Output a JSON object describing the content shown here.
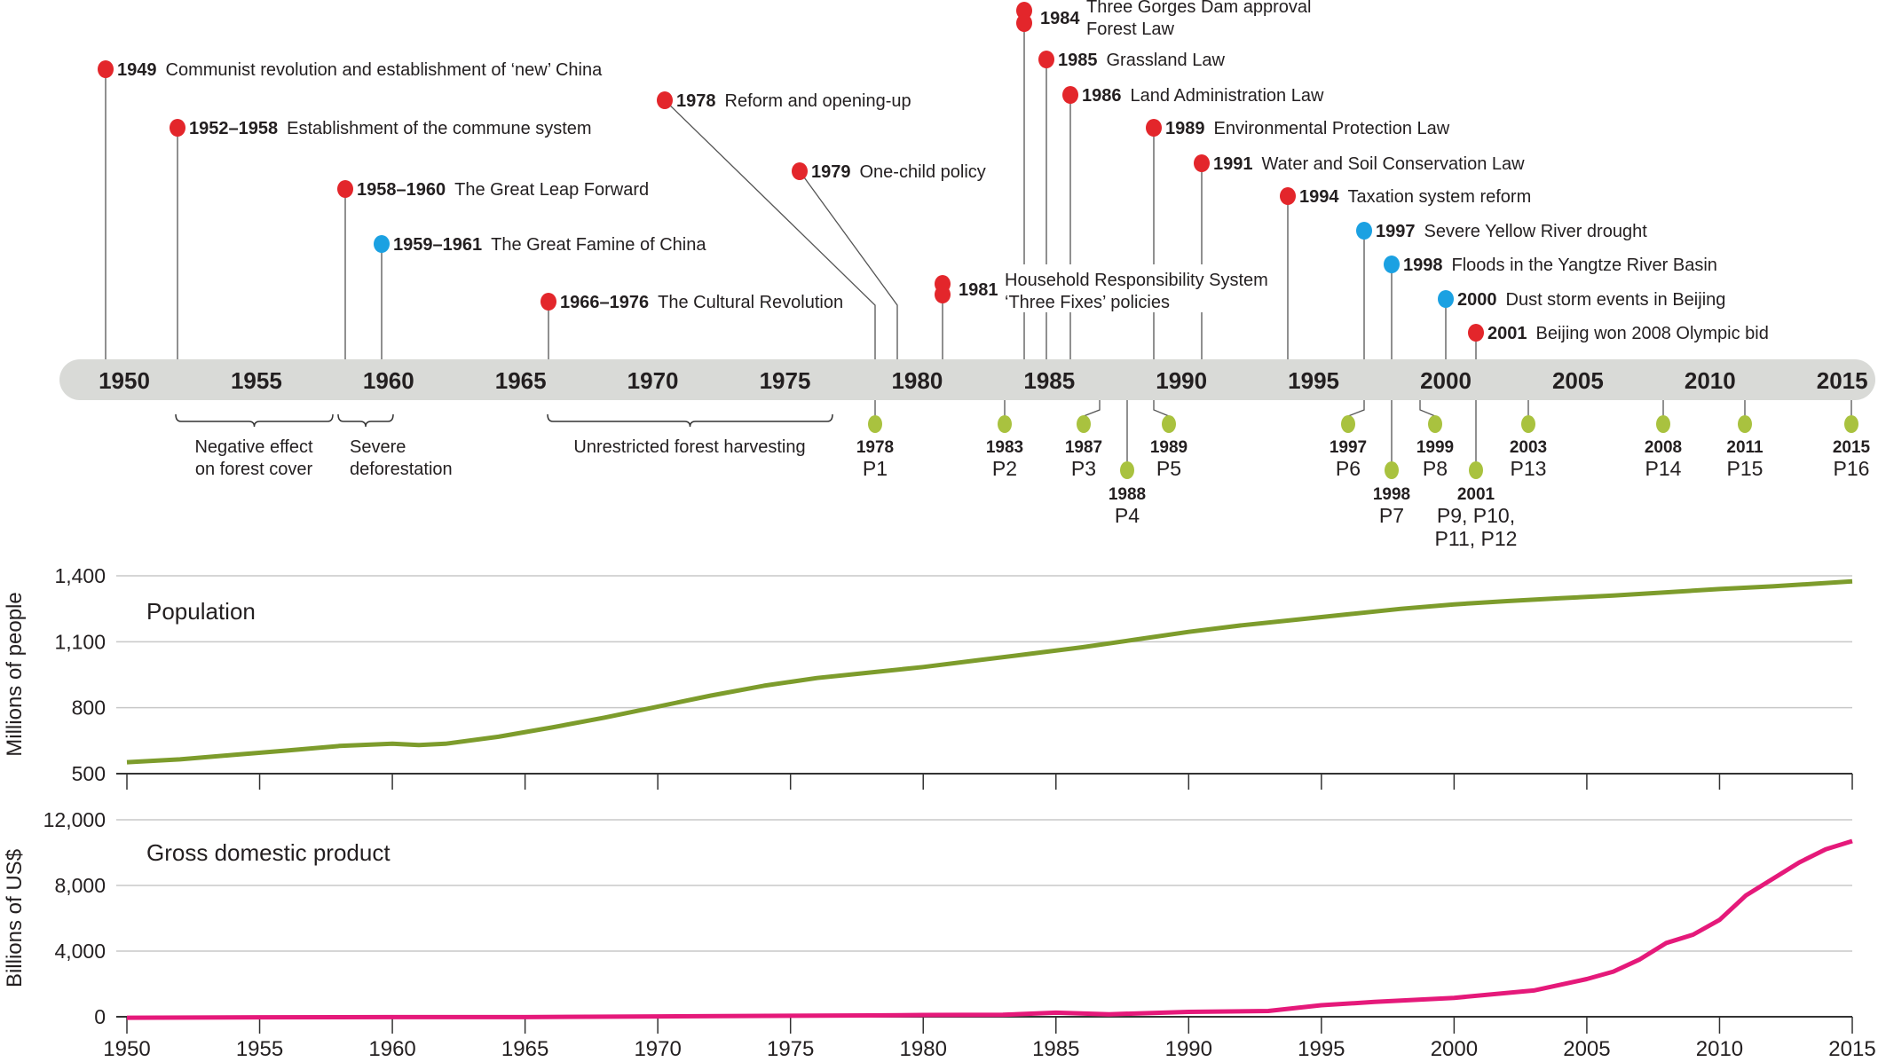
{
  "colors": {
    "event_policy": "#e3262b",
    "event_disaster": "#1ba1e2",
    "forest_policy": "#a9c23f",
    "timeline_bar": "#d9dad7",
    "population_line": "#7d9c2c",
    "gdp_line": "#e5197a"
  },
  "timeline": {
    "year_labels": [
      "1950",
      "1955",
      "1960",
      "1965",
      "1970",
      "1975",
      "1980",
      "1985",
      "1990",
      "1995",
      "2000",
      "2005",
      "2010",
      "2015"
    ],
    "events": [
      {
        "year": "1949",
        "lines": [
          "Communist revolution and establishment of ‘new’ China"
        ],
        "kind": "policy"
      },
      {
        "year": "1952–1958",
        "lines": [
          "Establishment of the commune system"
        ],
        "kind": "policy"
      },
      {
        "year": "1958–1960",
        "lines": [
          "The Great Leap Forward"
        ],
        "kind": "policy"
      },
      {
        "year": "1959–1961",
        "lines": [
          "The Great Famine of China"
        ],
        "kind": "disaster"
      },
      {
        "year": "1966–1976",
        "lines": [
          "The Cultural Revolution"
        ],
        "kind": "policy"
      },
      {
        "year": "1978",
        "lines": [
          "Reform and opening-up"
        ],
        "kind": "policy"
      },
      {
        "year": "1979",
        "lines": [
          "One-child policy"
        ],
        "kind": "policy"
      },
      {
        "year": "1981",
        "lines": [
          "Household Responsibility System",
          "‘Three Fixes’ policies"
        ],
        "kind": "policy"
      },
      {
        "year": "1984",
        "lines": [
          "Three Gorges Dam approval",
          "Forest Law"
        ],
        "kind": "policy"
      },
      {
        "year": "1985",
        "lines": [
          "Grassland Law"
        ],
        "kind": "policy"
      },
      {
        "year": "1986",
        "lines": [
          "Land Administration Law"
        ],
        "kind": "policy"
      },
      {
        "year": "1989",
        "lines": [
          "Environmental Protection Law"
        ],
        "kind": "policy"
      },
      {
        "year": "1991",
        "lines": [
          "Water and Soil Conservation Law"
        ],
        "kind": "policy"
      },
      {
        "year": "1994",
        "lines": [
          "Taxation system reform"
        ],
        "kind": "policy"
      },
      {
        "year": "1997",
        "lines": [
          "Severe Yellow River drought"
        ],
        "kind": "disaster"
      },
      {
        "year": "1998",
        "lines": [
          "Floods in the Yangtze River Basin"
        ],
        "kind": "disaster"
      },
      {
        "year": "2000",
        "lines": [
          "Dust storm events in Beijing"
        ],
        "kind": "disaster"
      },
      {
        "year": "2001",
        "lines": [
          "Beijing won 2008 Olympic bid"
        ],
        "kind": "policy"
      }
    ],
    "forest_policies": [
      {
        "year": "1978",
        "label": "P1"
      },
      {
        "year": "1983",
        "label": "P2"
      },
      {
        "year": "1987",
        "label": "P3"
      },
      {
        "year": "1988",
        "label": "P4"
      },
      {
        "year": "1989",
        "label": "P5"
      },
      {
        "year": "1997",
        "label": "P6"
      },
      {
        "year": "1998",
        "label": "P7"
      },
      {
        "year": "1999",
        "label": "P8"
      },
      {
        "year": "2001",
        "label": "P9, P10,|P11, P12"
      },
      {
        "year": "2003",
        "label": "P13"
      },
      {
        "year": "2008",
        "label": "P14"
      },
      {
        "year": "2011",
        "label": "P15"
      },
      {
        "year": "2015",
        "label": "P16"
      }
    ],
    "periods": [
      {
        "lines": [
          "Negative effect",
          "on forest cover"
        ]
      },
      {
        "lines": [
          "Severe",
          "deforestation"
        ]
      },
      {
        "lines": [
          "Unrestricted forest harvesting"
        ]
      }
    ]
  },
  "chart_data": [
    {
      "type": "line",
      "title": "Population",
      "ylabel": "Millions of people",
      "xlim": [
        1950,
        2015
      ],
      "ylim": [
        500,
        1400
      ],
      "yticks": [
        "500",
        "800",
        "1,100",
        "1,400"
      ],
      "ytick_values": [
        500,
        800,
        1100,
        1400
      ],
      "grid": true,
      "x": [
        1950,
        1952,
        1954,
        1956,
        1958,
        1960,
        1961,
        1962,
        1964,
        1966,
        1968,
        1970,
        1972,
        1974,
        1976,
        1978,
        1980,
        1982,
        1984,
        1986,
        1988,
        1990,
        1992,
        1994,
        1996,
        1998,
        2000,
        2002,
        2004,
        2006,
        2008,
        2010,
        2012,
        2015
      ],
      "values": [
        552,
        565,
        585,
        605,
        626,
        636,
        630,
        636,
        668,
        710,
        755,
        805,
        855,
        900,
        935,
        960,
        985,
        1015,
        1045,
        1075,
        1110,
        1145,
        1175,
        1200,
        1225,
        1250,
        1270,
        1285,
        1298,
        1310,
        1325,
        1340,
        1352,
        1375
      ]
    },
    {
      "type": "line",
      "title": "Gross domestic product",
      "ylabel": "Billions of US$",
      "xlim": [
        1950,
        2015
      ],
      "ylim": [
        0,
        12000
      ],
      "yticks": [
        "0",
        "4,000",
        "8,000",
        "12,000"
      ],
      "ytick_values": [
        0,
        4000,
        8000,
        12000
      ],
      "xticks": [
        "1950",
        "1955",
        "1960",
        "1965",
        "1970",
        "1975",
        "1980",
        "1985",
        "1990",
        "1995",
        "2000",
        "2005",
        "2010",
        "2015"
      ],
      "grid": true,
      "x": [
        1950,
        1955,
        1960,
        1965,
        1970,
        1975,
        1978,
        1980,
        1983,
        1985,
        1987,
        1990,
        1993,
        1995,
        1997,
        2000,
        2003,
        2005,
        2006,
        2007,
        2008,
        2009,
        2010,
        2011,
        2012,
        2013,
        2014,
        2015
      ],
      "values": [
        -60,
        -30,
        -20,
        -20,
        20,
        60,
        80,
        110,
        120,
        250,
        150,
        300,
        350,
        700,
        900,
        1150,
        1600,
        2300,
        2750,
        3500,
        4500,
        5000,
        5900,
        7400,
        8400,
        9400,
        10200,
        10700
      ]
    }
  ]
}
